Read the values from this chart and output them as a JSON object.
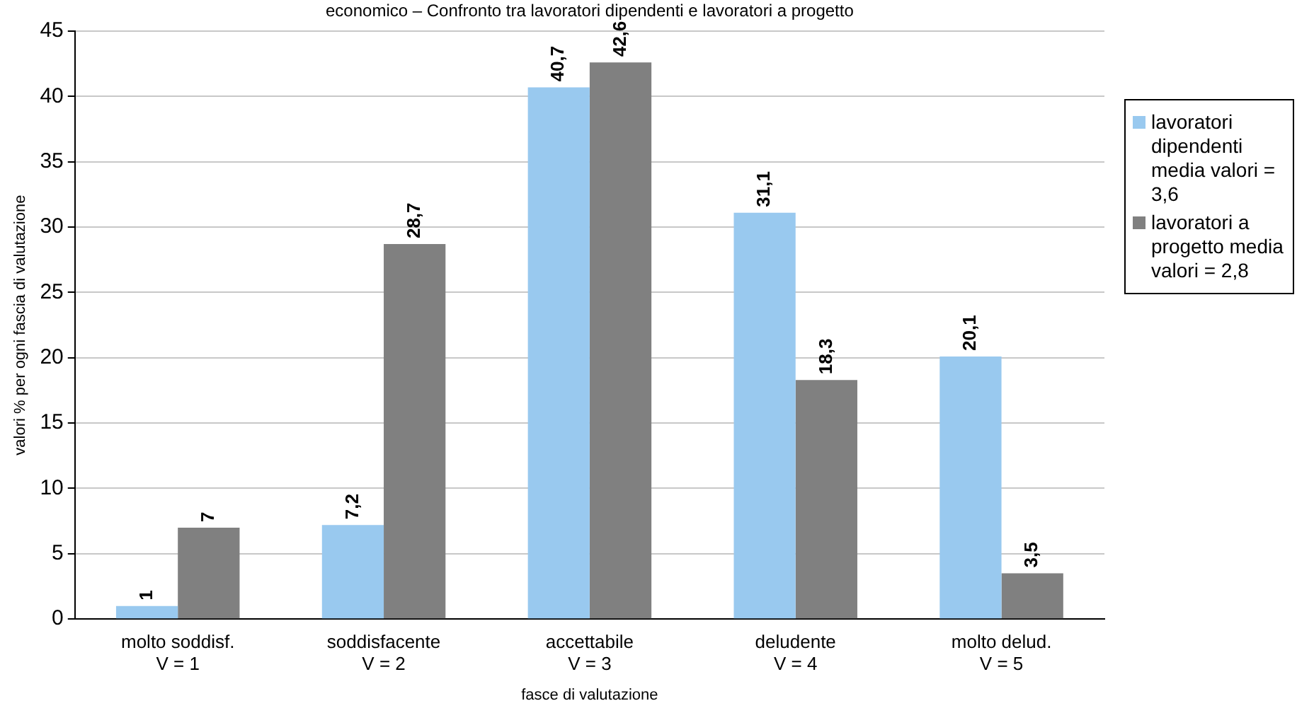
{
  "chart_data": {
    "type": "bar",
    "title": "economico – Confronto tra lavoratori dipendenti e lavoratori a progetto",
    "xlabel": "fasce di valutazione",
    "ylabel": "valori % per ogni fascia di valutazione",
    "categories": [
      "molto soddisf.\nV = 1",
      "soddisfacente\nV = 2",
      "accettabile\nV = 3",
      "deludente\nV = 4",
      "molto delud.\nV = 5"
    ],
    "series": [
      {
        "name": "lavoratori dipendenti media valori = 3,6",
        "color": "#99c9ef",
        "values": [
          1,
          7.2,
          40.7,
          31.1,
          20.1
        ],
        "value_labels": [
          "1",
          "7,2",
          "40,7",
          "31,1",
          "20,1"
        ]
      },
      {
        "name": "lavoratori a progetto media valori = 2,8",
        "color": "#808080",
        "values": [
          7,
          28.7,
          42.6,
          18.3,
          3.5
        ],
        "value_labels": [
          "7",
          "28,7",
          "42,6",
          "18,3",
          "3,5"
        ]
      }
    ],
    "ylim": [
      0,
      45
    ],
    "yticks": [
      0,
      5,
      10,
      15,
      20,
      25,
      30,
      35,
      40,
      45
    ],
    "grid": "y",
    "legend": "right"
  }
}
